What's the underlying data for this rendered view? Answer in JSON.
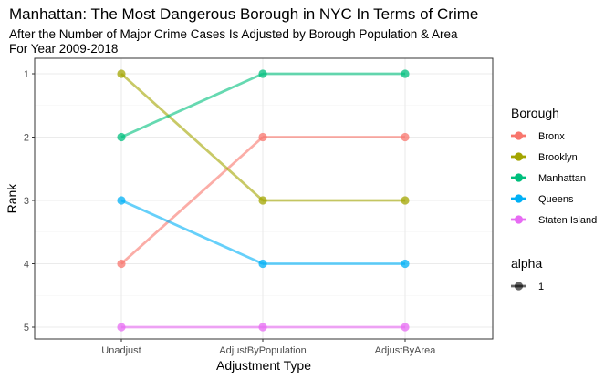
{
  "chart_data": {
    "type": "line",
    "title": "Manhattan: The Most Dangerous Borough in NYC In Terms of Crime",
    "subtitle": [
      "After the Number of Major Crime Cases Is Adjusted by Borough Population & Area",
      "For Year 2009-2018"
    ],
    "xlabel": "Adjustment Type",
    "ylabel": "Rank",
    "categories": [
      "Unadjust",
      "AdjustByPopulation",
      "AdjustByArea"
    ],
    "y_ticks": [
      "1",
      "2",
      "3",
      "4",
      "5"
    ],
    "ylim": [
      5,
      1
    ],
    "y_reversed": true,
    "grid": true,
    "legend_position": "right",
    "legend_title": "Borough",
    "series": [
      {
        "name": "Bronx",
        "color": "#F8766D",
        "values": [
          4,
          2,
          2
        ]
      },
      {
        "name": "Brooklyn",
        "color": "#A3A500",
        "values": [
          1,
          3,
          3
        ]
      },
      {
        "name": "Manhattan",
        "color": "#00BF7D",
        "values": [
          2,
          1,
          1
        ]
      },
      {
        "name": "Queens",
        "color": "#00B0F6",
        "values": [
          3,
          4,
          4
        ]
      },
      {
        "name": "Staten Island",
        "color": "#E76BF3",
        "values": [
          5,
          5,
          5
        ]
      }
    ],
    "alpha_legend": {
      "title": "alpha",
      "label": "1",
      "color": "#000000"
    },
    "panel_border_color": "#333333",
    "grid_color": "#ebebeb"
  }
}
